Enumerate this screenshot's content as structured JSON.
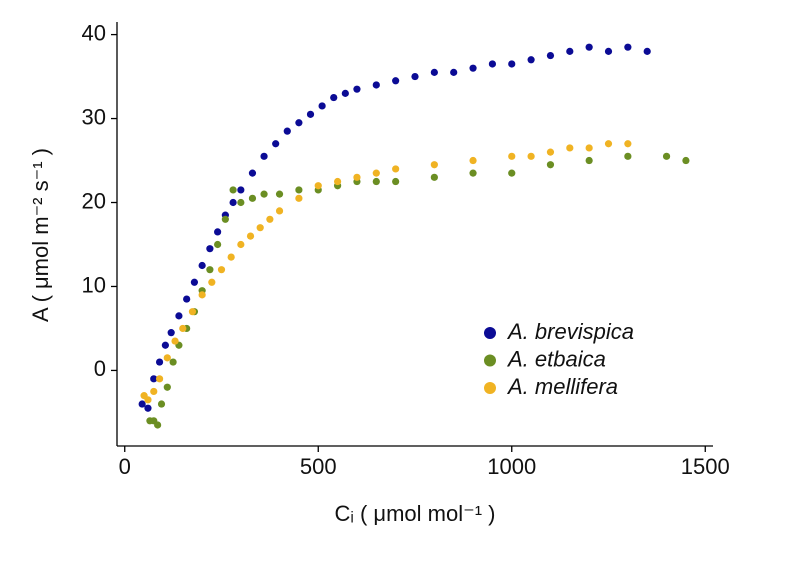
{
  "chart_data": {
    "type": "scatter",
    "xlabel": "Cᵢ ( μmol mol⁻¹ )",
    "ylabel": "A ( μmol m⁻² s⁻¹ )",
    "xlim": [
      -20,
      1520
    ],
    "xticks": [
      0,
      500,
      1000,
      1500
    ],
    "ylim": [
      -9,
      41.5
    ],
    "yticks": [
      0,
      10,
      20,
      30,
      40
    ],
    "grid": false,
    "legend": "lower right",
    "series": [
      {
        "name": "A. brevispica",
        "color": "#0b0b95",
        "x": [
          45,
          60,
          75,
          90,
          105,
          120,
          140,
          160,
          180,
          200,
          220,
          240,
          260,
          280,
          300,
          330,
          360,
          390,
          420,
          450,
          480,
          510,
          540,
          570,
          600,
          650,
          700,
          750,
          800,
          850,
          900,
          950,
          1000,
          1050,
          1100,
          1150,
          1200,
          1250,
          1300,
          1350
        ],
        "values": [
          -4,
          -4.5,
          -1,
          1,
          3,
          4.5,
          6.5,
          8.5,
          10.5,
          12.5,
          14.5,
          16.5,
          18.5,
          20,
          21.5,
          23.5,
          25.5,
          27,
          28.5,
          29.5,
          30.5,
          31.5,
          32.5,
          33,
          33.5,
          34,
          34.5,
          35,
          35.5,
          35.5,
          36,
          36.5,
          36.5,
          37,
          37.5,
          38,
          38.5,
          38,
          38.5,
          38
        ]
      },
      {
        "name": "A. etbaica",
        "color": "#6b8e23",
        "x": [
          65,
          75,
          85,
          95,
          110,
          125,
          140,
          160,
          180,
          200,
          220,
          240,
          260,
          280,
          300,
          330,
          360,
          400,
          450,
          500,
          550,
          600,
          650,
          700,
          800,
          900,
          1000,
          1100,
          1200,
          1300,
          1400,
          1450
        ],
        "values": [
          -6,
          -6,
          -6.5,
          -4,
          -2,
          1,
          3,
          5,
          7,
          9.5,
          12,
          15,
          18,
          21.5,
          20,
          20.5,
          21,
          21,
          21.5,
          21.5,
          22,
          22.5,
          22.5,
          22.5,
          23,
          23.5,
          23.5,
          24.5,
          25,
          25.5,
          25.5,
          25
        ]
      },
      {
        "name": "A. mellifera",
        "color": "#f0b323",
        "x": [
          50,
          60,
          75,
          90,
          110,
          130,
          150,
          175,
          200,
          225,
          250,
          275,
          300,
          325,
          350,
          375,
          400,
          450,
          500,
          550,
          600,
          650,
          700,
          800,
          900,
          1000,
          1050,
          1100,
          1150,
          1200,
          1250,
          1300
        ],
        "values": [
          -3,
          -3.5,
          -2.5,
          -1,
          1.5,
          3.5,
          5,
          7,
          9,
          10.5,
          12,
          13.5,
          15,
          16,
          17,
          18,
          19,
          20.5,
          22,
          22.5,
          23,
          23.5,
          24,
          24.5,
          25,
          25.5,
          25.5,
          26,
          26.5,
          26.5,
          27,
          27
        ]
      }
    ]
  }
}
